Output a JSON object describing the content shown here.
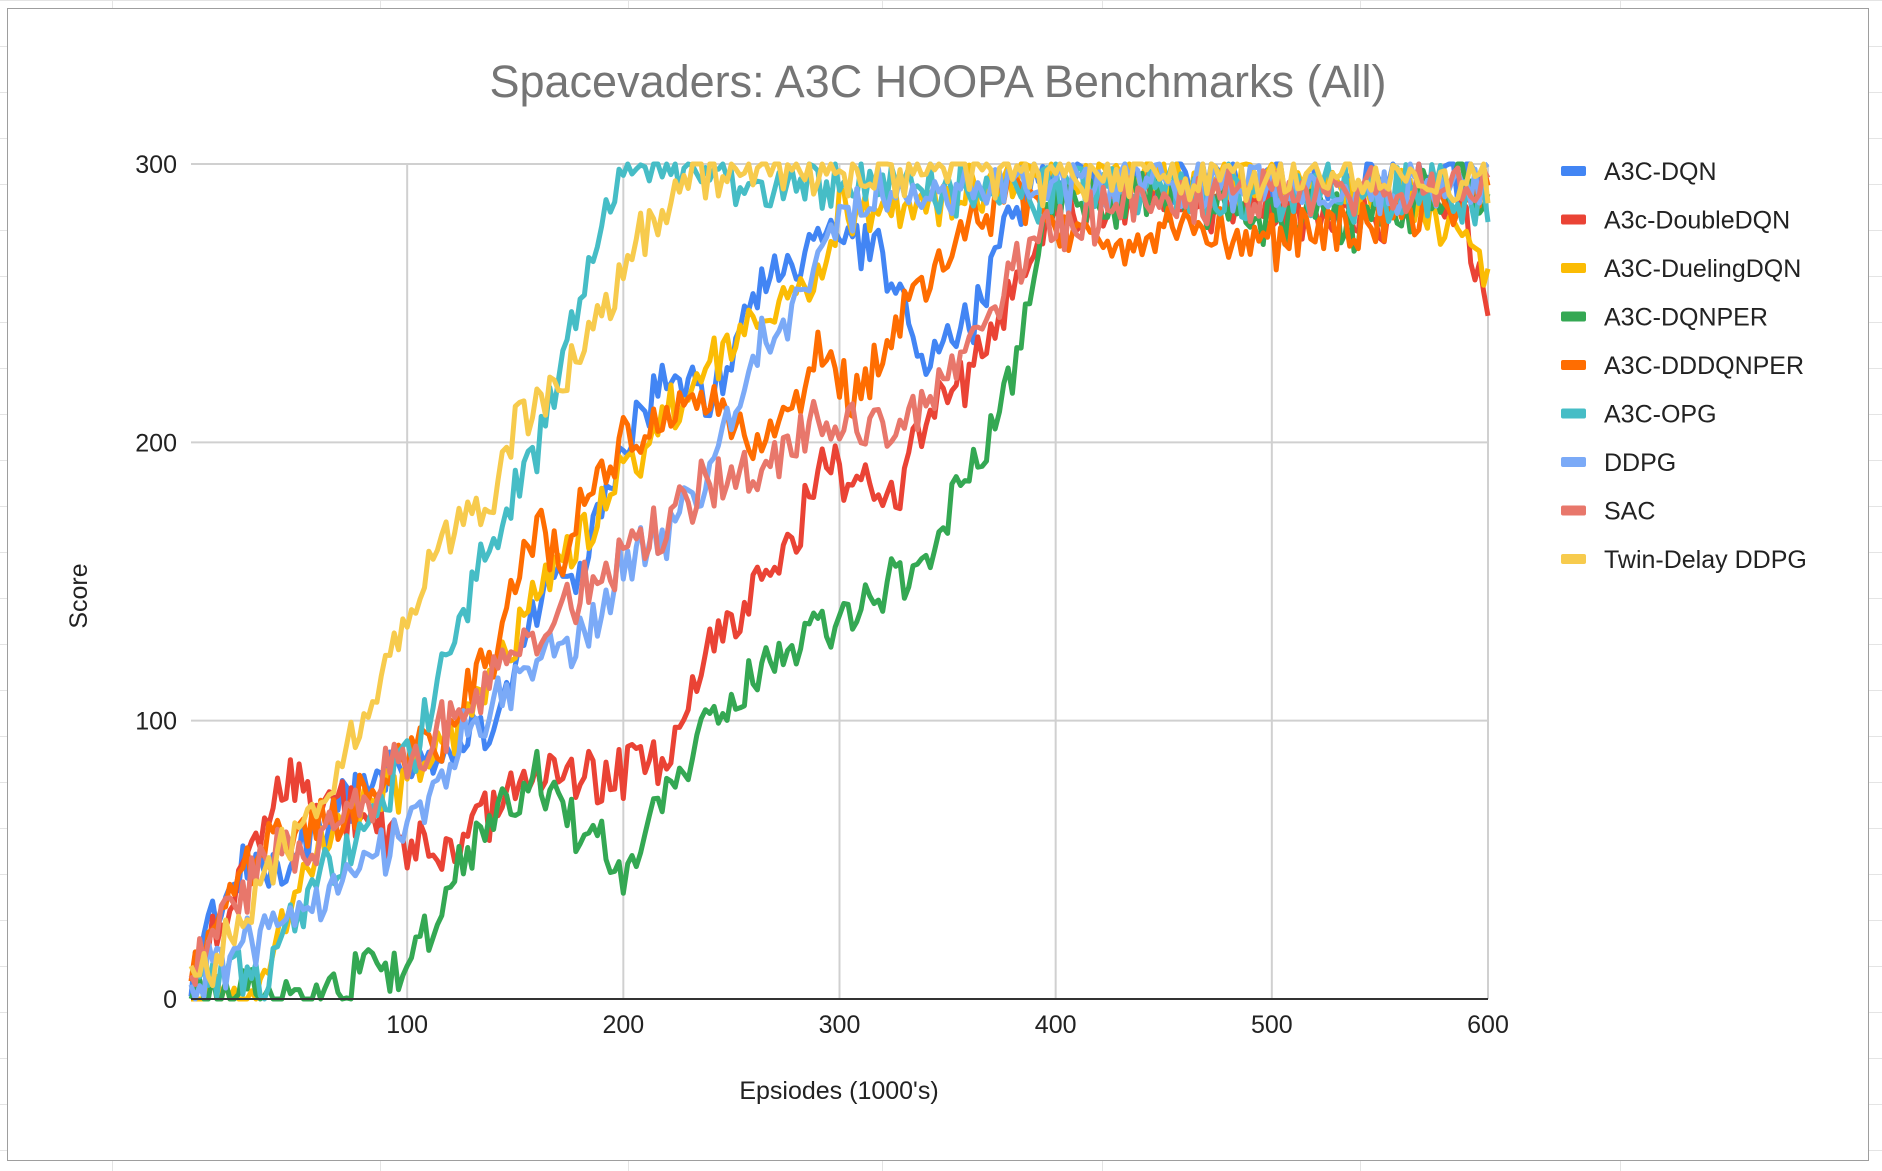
{
  "chart_data": {
    "type": "line",
    "title": "Spacevaders: A3C HOOPA Benchmarks (All)",
    "xlabel": "Epsiodes (1000's)",
    "ylabel": "Score",
    "xlim": [
      0,
      600
    ],
    "ylim": [
      0,
      300
    ],
    "x_ticks": [
      "100",
      "200",
      "300",
      "400",
      "500",
      "600"
    ],
    "y_ticks": [
      "0",
      "100",
      "200",
      "300"
    ],
    "grid": true,
    "legend_position": "right",
    "series": [
      {
        "name": "A3C-DQN",
        "color": "#4285F4",
        "anchors": [
          [
            0,
            5
          ],
          [
            10,
            30
          ],
          [
            20,
            45
          ],
          [
            40,
            50
          ],
          [
            60,
            62
          ],
          [
            80,
            75
          ],
          [
            100,
            85
          ],
          [
            120,
            88
          ],
          [
            140,
            100
          ],
          [
            160,
            140
          ],
          [
            170,
            158
          ],
          [
            180,
            150
          ],
          [
            200,
            200
          ],
          [
            220,
            225
          ],
          [
            240,
            215
          ],
          [
            260,
            250
          ],
          [
            270,
            268
          ],
          [
            280,
            255
          ],
          [
            290,
            280
          ],
          [
            300,
            275
          ],
          [
            320,
            270
          ],
          [
            330,
            245
          ],
          [
            340,
            230
          ],
          [
            350,
            235
          ],
          [
            360,
            242
          ],
          [
            370,
            265
          ],
          [
            380,
            282
          ],
          [
            390,
            295
          ],
          [
            600,
            295
          ]
        ]
      },
      {
        "name": "A3c-DoubleDQN",
        "color": "#EA4335",
        "anchors": [
          [
            0,
            5
          ],
          [
            20,
            42
          ],
          [
            40,
            70
          ],
          [
            50,
            80
          ],
          [
            60,
            72
          ],
          [
            80,
            65
          ],
          [
            90,
            60
          ],
          [
            100,
            55
          ],
          [
            120,
            55
          ],
          [
            140,
            70
          ],
          [
            160,
            80
          ],
          [
            180,
            82
          ],
          [
            200,
            80
          ],
          [
            220,
            85
          ],
          [
            240,
            125
          ],
          [
            260,
            148
          ],
          [
            280,
            165
          ],
          [
            290,
            195
          ],
          [
            300,
            190
          ],
          [
            310,
            188
          ],
          [
            320,
            175
          ],
          [
            330,
            185
          ],
          [
            340,
            210
          ],
          [
            360,
            225
          ],
          [
            380,
            255
          ],
          [
            400,
            285
          ],
          [
            450,
            290
          ],
          [
            500,
            283
          ],
          [
            550,
            280
          ],
          [
            580,
            290
          ],
          [
            590,
            278
          ],
          [
            600,
            252
          ]
        ]
      },
      {
        "name": "A3C-DuelingDQN",
        "color": "#FBBC04",
        "anchors": [
          [
            0,
            0
          ],
          [
            30,
            0
          ],
          [
            40,
            20
          ],
          [
            50,
            35
          ],
          [
            60,
            55
          ],
          [
            70,
            70
          ],
          [
            80,
            70
          ],
          [
            100,
            75
          ],
          [
            120,
            95
          ],
          [
            140,
            112
          ],
          [
            160,
            145
          ],
          [
            180,
            165
          ],
          [
            200,
            190
          ],
          [
            220,
            208
          ],
          [
            240,
            232
          ],
          [
            260,
            240
          ],
          [
            280,
            250
          ],
          [
            290,
            255
          ],
          [
            300,
            285
          ],
          [
            320,
            280
          ],
          [
            340,
            285
          ],
          [
            360,
            292
          ],
          [
            400,
            295
          ],
          [
            500,
            295
          ],
          [
            550,
            288
          ],
          [
            560,
            290
          ],
          [
            580,
            280
          ],
          [
            590,
            272
          ],
          [
            600,
            258
          ]
        ]
      },
      {
        "name": "A3C-DQNPER",
        "color": "#34A853",
        "anchors": [
          [
            0,
            0
          ],
          [
            50,
            0
          ],
          [
            70,
            0
          ],
          [
            80,
            15
          ],
          [
            90,
            8
          ],
          [
            100,
            12
          ],
          [
            110,
            25
          ],
          [
            120,
            42
          ],
          [
            140,
            65
          ],
          [
            150,
            75
          ],
          [
            160,
            80
          ],
          [
            170,
            70
          ],
          [
            180,
            60
          ],
          [
            190,
            58
          ],
          [
            200,
            40
          ],
          [
            210,
            60
          ],
          [
            220,
            75
          ],
          [
            240,
            100
          ],
          [
            260,
            115
          ],
          [
            270,
            120
          ],
          [
            280,
            125
          ],
          [
            300,
            135
          ],
          [
            320,
            145
          ],
          [
            340,
            160
          ],
          [
            360,
            190
          ],
          [
            370,
            205
          ],
          [
            380,
            225
          ],
          [
            390,
            260
          ],
          [
            400,
            285
          ],
          [
            450,
            290
          ],
          [
            500,
            280
          ],
          [
            550,
            280
          ],
          [
            580,
            290
          ],
          [
            600,
            290
          ]
        ]
      },
      {
        "name": "A3C-DDDQNPER",
        "color": "#FF6D01",
        "anchors": [
          [
            0,
            5
          ],
          [
            20,
            42
          ],
          [
            40,
            55
          ],
          [
            60,
            65
          ],
          [
            80,
            72
          ],
          [
            100,
            85
          ],
          [
            120,
            100
          ],
          [
            140,
            120
          ],
          [
            150,
            150
          ],
          [
            160,
            170
          ],
          [
            170,
            160
          ],
          [
            180,
            175
          ],
          [
            200,
            200
          ],
          [
            220,
            205
          ],
          [
            240,
            220
          ],
          [
            260,
            195
          ],
          [
            280,
            215
          ],
          [
            290,
            235
          ],
          [
            300,
            225
          ],
          [
            310,
            215
          ],
          [
            320,
            230
          ],
          [
            330,
            250
          ],
          [
            340,
            258
          ],
          [
            350,
            265
          ],
          [
            360,
            280
          ],
          [
            380,
            290
          ],
          [
            400,
            280
          ],
          [
            420,
            270
          ],
          [
            450,
            280
          ],
          [
            500,
            272
          ],
          [
            550,
            282
          ],
          [
            600,
            290
          ]
        ]
      },
      {
        "name": "A3C-OPG",
        "color": "#46BDC6",
        "anchors": [
          [
            0,
            5
          ],
          [
            10,
            10
          ],
          [
            20,
            8
          ],
          [
            30,
            5
          ],
          [
            40,
            15
          ],
          [
            50,
            30
          ],
          [
            60,
            45
          ],
          [
            80,
            60
          ],
          [
            100,
            85
          ],
          [
            110,
            100
          ],
          [
            120,
            130
          ],
          [
            140,
            162
          ],
          [
            160,
            200
          ],
          [
            180,
            255
          ],
          [
            190,
            280
          ],
          [
            200,
            300
          ],
          [
            240,
            297
          ],
          [
            260,
            293
          ],
          [
            280,
            295
          ],
          [
            300,
            295
          ],
          [
            350,
            292
          ],
          [
            400,
            290
          ],
          [
            450,
            293
          ],
          [
            500,
            288
          ],
          [
            550,
            290
          ],
          [
            580,
            292
          ],
          [
            600,
            282
          ]
        ]
      },
      {
        "name": "DDPG",
        "color": "#7BAAF7",
        "anchors": [
          [
            0,
            5
          ],
          [
            20,
            15
          ],
          [
            40,
            28
          ],
          [
            60,
            38
          ],
          [
            80,
            48
          ],
          [
            100,
            60
          ],
          [
            120,
            88
          ],
          [
            140,
            105
          ],
          [
            160,
            122
          ],
          [
            180,
            128
          ],
          [
            190,
            140
          ],
          [
            200,
            160
          ],
          [
            220,
            168
          ],
          [
            240,
            190
          ],
          [
            260,
            230
          ],
          [
            280,
            252
          ],
          [
            290,
            268
          ],
          [
            300,
            285
          ],
          [
            320,
            290
          ],
          [
            350,
            292
          ],
          [
            400,
            292
          ],
          [
            500,
            292
          ],
          [
            600,
            292
          ]
        ]
      },
      {
        "name": "SAC",
        "color": "#E8776B",
        "anchors": [
          [
            0,
            5
          ],
          [
            20,
            35
          ],
          [
            40,
            52
          ],
          [
            60,
            58
          ],
          [
            80,
            72
          ],
          [
            100,
            88
          ],
          [
            120,
            100
          ],
          [
            140,
            112
          ],
          [
            160,
            130
          ],
          [
            180,
            145
          ],
          [
            200,
            160
          ],
          [
            220,
            172
          ],
          [
            240,
            185
          ],
          [
            260,
            192
          ],
          [
            280,
            200
          ],
          [
            290,
            210
          ],
          [
            300,
            205
          ],
          [
            320,
            205
          ],
          [
            340,
            215
          ],
          [
            360,
            232
          ],
          [
            380,
            262
          ],
          [
            400,
            280
          ],
          [
            450,
            288
          ],
          [
            500,
            290
          ],
          [
            550,
            292
          ],
          [
            600,
            292
          ]
        ]
      },
      {
        "name": "Twin-Delay DDPG",
        "color": "#F7CB4D",
        "anchors": [
          [
            0,
            5
          ],
          [
            20,
            25
          ],
          [
            40,
            50
          ],
          [
            60,
            72
          ],
          [
            70,
            85
          ],
          [
            80,
            98
          ],
          [
            90,
            118
          ],
          [
            100,
            130
          ],
          [
            110,
            158
          ],
          [
            120,
            168
          ],
          [
            140,
            180
          ],
          [
            150,
            205
          ],
          [
            160,
            215
          ],
          [
            170,
            225
          ],
          [
            180,
            235
          ],
          [
            190,
            248
          ],
          [
            200,
            262
          ],
          [
            210,
            275
          ],
          [
            220,
            282
          ],
          [
            230,
            295
          ],
          [
            240,
            298
          ],
          [
            300,
            297
          ],
          [
            400,
            296
          ],
          [
            500,
            296
          ],
          [
            600,
            296
          ]
        ]
      }
    ]
  }
}
